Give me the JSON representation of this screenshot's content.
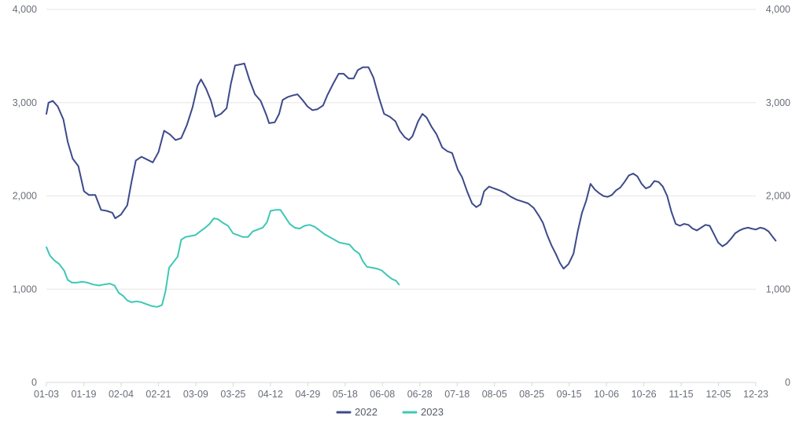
{
  "chart_data": {
    "type": "line",
    "title": "",
    "xlabel": "",
    "ylabel": "",
    "ylim": [
      0,
      4000
    ],
    "y_ticks": [
      "0",
      "1,000",
      "2,000",
      "3,000",
      "4,000"
    ],
    "y_tick_values": [
      0,
      1000,
      2000,
      3000,
      4000
    ],
    "x_tick_labels": [
      "01-03",
      "01-19",
      "02-04",
      "02-21",
      "03-09",
      "03-25",
      "04-12",
      "04-29",
      "05-18",
      "06-08",
      "06-28",
      "07-18",
      "08-05",
      "08-25",
      "09-15",
      "10-06",
      "10-26",
      "11-15",
      "12-05",
      "12-23"
    ],
    "x_range": [
      0,
      100
    ],
    "grid": true,
    "legend_position": "bottom",
    "series": [
      {
        "name": "2022",
        "color": "#3d4a8a",
        "points": [
          [
            0.0,
            2880
          ],
          [
            0.3,
            3000
          ],
          [
            0.9,
            3020
          ],
          [
            1.6,
            2960
          ],
          [
            2.4,
            2820
          ],
          [
            3.0,
            2580
          ],
          [
            3.7,
            2400
          ],
          [
            4.5,
            2320
          ],
          [
            5.3,
            2050
          ],
          [
            6.0,
            2010
          ],
          [
            6.9,
            2010
          ],
          [
            7.7,
            1850
          ],
          [
            8.5,
            1840
          ],
          [
            9.3,
            1820
          ],
          [
            9.7,
            1760
          ],
          [
            10.5,
            1800
          ],
          [
            11.4,
            1900
          ],
          [
            12.0,
            2150
          ],
          [
            12.6,
            2380
          ],
          [
            13.4,
            2420
          ],
          [
            14.2,
            2390
          ],
          [
            15.0,
            2360
          ],
          [
            15.8,
            2470
          ],
          [
            16.6,
            2700
          ],
          [
            17.4,
            2660
          ],
          [
            18.2,
            2600
          ],
          [
            19.0,
            2620
          ],
          [
            19.8,
            2760
          ],
          [
            20.6,
            2950
          ],
          [
            21.3,
            3180
          ],
          [
            21.8,
            3250
          ],
          [
            22.5,
            3150
          ],
          [
            23.2,
            3020
          ],
          [
            23.8,
            2850
          ],
          [
            24.6,
            2880
          ],
          [
            25.4,
            2940
          ],
          [
            26.0,
            3200
          ],
          [
            26.6,
            3400
          ],
          [
            27.3,
            3410
          ],
          [
            27.9,
            3420
          ],
          [
            28.6,
            3250
          ],
          [
            29.4,
            3090
          ],
          [
            30.2,
            3020
          ],
          [
            31.0,
            2870
          ],
          [
            31.4,
            2780
          ],
          [
            32.2,
            2790
          ],
          [
            32.8,
            2880
          ],
          [
            33.3,
            3030
          ],
          [
            34.0,
            3060
          ],
          [
            34.8,
            3080
          ],
          [
            35.4,
            3090
          ],
          [
            36.2,
            3020
          ],
          [
            36.8,
            2960
          ],
          [
            37.5,
            2920
          ],
          [
            38.2,
            2930
          ],
          [
            39.0,
            2970
          ],
          [
            39.6,
            3080
          ],
          [
            40.4,
            3200
          ],
          [
            41.2,
            3310
          ],
          [
            41.9,
            3310
          ],
          [
            42.6,
            3260
          ],
          [
            43.3,
            3260
          ],
          [
            43.9,
            3350
          ],
          [
            44.6,
            3380
          ],
          [
            45.4,
            3380
          ],
          [
            46.1,
            3270
          ],
          [
            46.9,
            3050
          ],
          [
            47.6,
            2880
          ],
          [
            48.4,
            2850
          ],
          [
            49.2,
            2800
          ],
          [
            49.8,
            2700
          ],
          [
            50.5,
            2630
          ],
          [
            51.1,
            2600
          ],
          [
            51.6,
            2640
          ],
          [
            52.4,
            2800
          ],
          [
            53.0,
            2880
          ],
          [
            53.6,
            2840
          ],
          [
            54.3,
            2740
          ],
          [
            55.0,
            2660
          ],
          [
            55.8,
            2520
          ],
          [
            56.5,
            2480
          ],
          [
            57.2,
            2460
          ],
          [
            58.0,
            2280
          ],
          [
            58.6,
            2200
          ],
          [
            59.3,
            2050
          ],
          [
            60.0,
            1920
          ],
          [
            60.6,
            1880
          ],
          [
            61.2,
            1910
          ],
          [
            61.7,
            2050
          ],
          [
            62.4,
            2100
          ],
          [
            63.1,
            2080
          ],
          [
            63.9,
            2060
          ],
          [
            64.7,
            2030
          ],
          [
            65.5,
            1990
          ],
          [
            66.3,
            1960
          ],
          [
            67.1,
            1940
          ],
          [
            67.9,
            1920
          ],
          [
            68.7,
            1870
          ],
          [
            69.4,
            1790
          ],
          [
            70.0,
            1710
          ],
          [
            70.6,
            1580
          ],
          [
            71.2,
            1470
          ],
          [
            71.8,
            1380
          ],
          [
            72.4,
            1280
          ],
          [
            72.9,
            1220
          ],
          [
            73.6,
            1270
          ],
          [
            74.3,
            1380
          ],
          [
            74.9,
            1620
          ],
          [
            75.5,
            1820
          ],
          [
            76.1,
            1950
          ],
          [
            76.7,
            2130
          ],
          [
            77.3,
            2070
          ],
          [
            77.9,
            2030
          ],
          [
            78.5,
            2000
          ],
          [
            79.1,
            1990
          ],
          [
            79.7,
            2010
          ],
          [
            80.3,
            2060
          ],
          [
            80.9,
            2090
          ],
          [
            81.5,
            2150
          ],
          [
            82.1,
            2220
          ],
          [
            82.7,
            2240
          ],
          [
            83.3,
            2210
          ],
          [
            83.9,
            2130
          ],
          [
            84.5,
            2080
          ],
          [
            85.1,
            2100
          ],
          [
            85.7,
            2160
          ],
          [
            86.3,
            2150
          ],
          [
            86.9,
            2100
          ],
          [
            87.5,
            2000
          ],
          [
            88.1,
            1830
          ],
          [
            88.7,
            1700
          ],
          [
            89.3,
            1680
          ],
          [
            89.9,
            1700
          ],
          [
            90.5,
            1690
          ],
          [
            91.1,
            1650
          ],
          [
            91.7,
            1630
          ],
          [
            92.3,
            1660
          ],
          [
            92.9,
            1690
          ],
          [
            93.5,
            1680
          ],
          [
            94.1,
            1590
          ],
          [
            94.7,
            1500
          ],
          [
            95.3,
            1460
          ],
          [
            95.9,
            1490
          ],
          [
            96.5,
            1540
          ],
          [
            97.1,
            1600
          ],
          [
            97.7,
            1630
          ],
          [
            98.3,
            1650
          ],
          [
            98.9,
            1660
          ],
          [
            99.4,
            1650
          ],
          [
            100.0,
            1640
          ],
          [
            100.6,
            1660
          ],
          [
            101.2,
            1650
          ],
          [
            101.8,
            1620
          ],
          [
            102.4,
            1560
          ],
          [
            102.8,
            1520
          ]
        ]
      },
      {
        "name": "2023",
        "color": "#3ec7b6",
        "points": [
          [
            0.0,
            1450
          ],
          [
            0.5,
            1360
          ],
          [
            1.1,
            1310
          ],
          [
            1.8,
            1270
          ],
          [
            2.5,
            1200
          ],
          [
            3.0,
            1100
          ],
          [
            3.6,
            1070
          ],
          [
            4.3,
            1070
          ],
          [
            5.1,
            1080
          ],
          [
            5.8,
            1070
          ],
          [
            6.6,
            1050
          ],
          [
            7.4,
            1040
          ],
          [
            8.1,
            1050
          ],
          [
            8.9,
            1060
          ],
          [
            9.6,
            1040
          ],
          [
            10.2,
            960
          ],
          [
            10.8,
            930
          ],
          [
            11.4,
            880
          ],
          [
            12.0,
            860
          ],
          [
            12.7,
            870
          ],
          [
            13.4,
            860
          ],
          [
            14.1,
            840
          ],
          [
            14.8,
            820
          ],
          [
            15.6,
            810
          ],
          [
            16.3,
            830
          ],
          [
            16.8,
            980
          ],
          [
            17.3,
            1230
          ],
          [
            17.9,
            1290
          ],
          [
            18.5,
            1350
          ],
          [
            19.0,
            1530
          ],
          [
            19.6,
            1560
          ],
          [
            20.3,
            1570
          ],
          [
            21.0,
            1580
          ],
          [
            21.7,
            1620
          ],
          [
            22.4,
            1660
          ],
          [
            23.0,
            1700
          ],
          [
            23.6,
            1760
          ],
          [
            24.2,
            1750
          ],
          [
            24.9,
            1710
          ],
          [
            25.6,
            1680
          ],
          [
            26.3,
            1600
          ],
          [
            27.0,
            1580
          ],
          [
            27.7,
            1560
          ],
          [
            28.4,
            1560
          ],
          [
            29.1,
            1620
          ],
          [
            29.8,
            1640
          ],
          [
            30.5,
            1660
          ],
          [
            31.1,
            1720
          ],
          [
            31.6,
            1840
          ],
          [
            32.3,
            1850
          ],
          [
            33.0,
            1850
          ],
          [
            33.6,
            1780
          ],
          [
            34.3,
            1700
          ],
          [
            35.0,
            1660
          ],
          [
            35.7,
            1650
          ],
          [
            36.4,
            1680
          ],
          [
            37.1,
            1690
          ],
          [
            37.8,
            1670
          ],
          [
            38.5,
            1630
          ],
          [
            39.2,
            1590
          ],
          [
            39.9,
            1560
          ],
          [
            40.6,
            1530
          ],
          [
            41.3,
            1500
          ],
          [
            42.0,
            1490
          ],
          [
            42.7,
            1480
          ],
          [
            43.4,
            1420
          ],
          [
            44.1,
            1380
          ],
          [
            44.6,
            1300
          ],
          [
            45.2,
            1240
          ],
          [
            45.9,
            1230
          ],
          [
            46.6,
            1220
          ],
          [
            47.3,
            1200
          ],
          [
            48.0,
            1150
          ],
          [
            48.7,
            1110
          ],
          [
            49.3,
            1090
          ],
          [
            49.7,
            1050
          ]
        ]
      }
    ]
  }
}
